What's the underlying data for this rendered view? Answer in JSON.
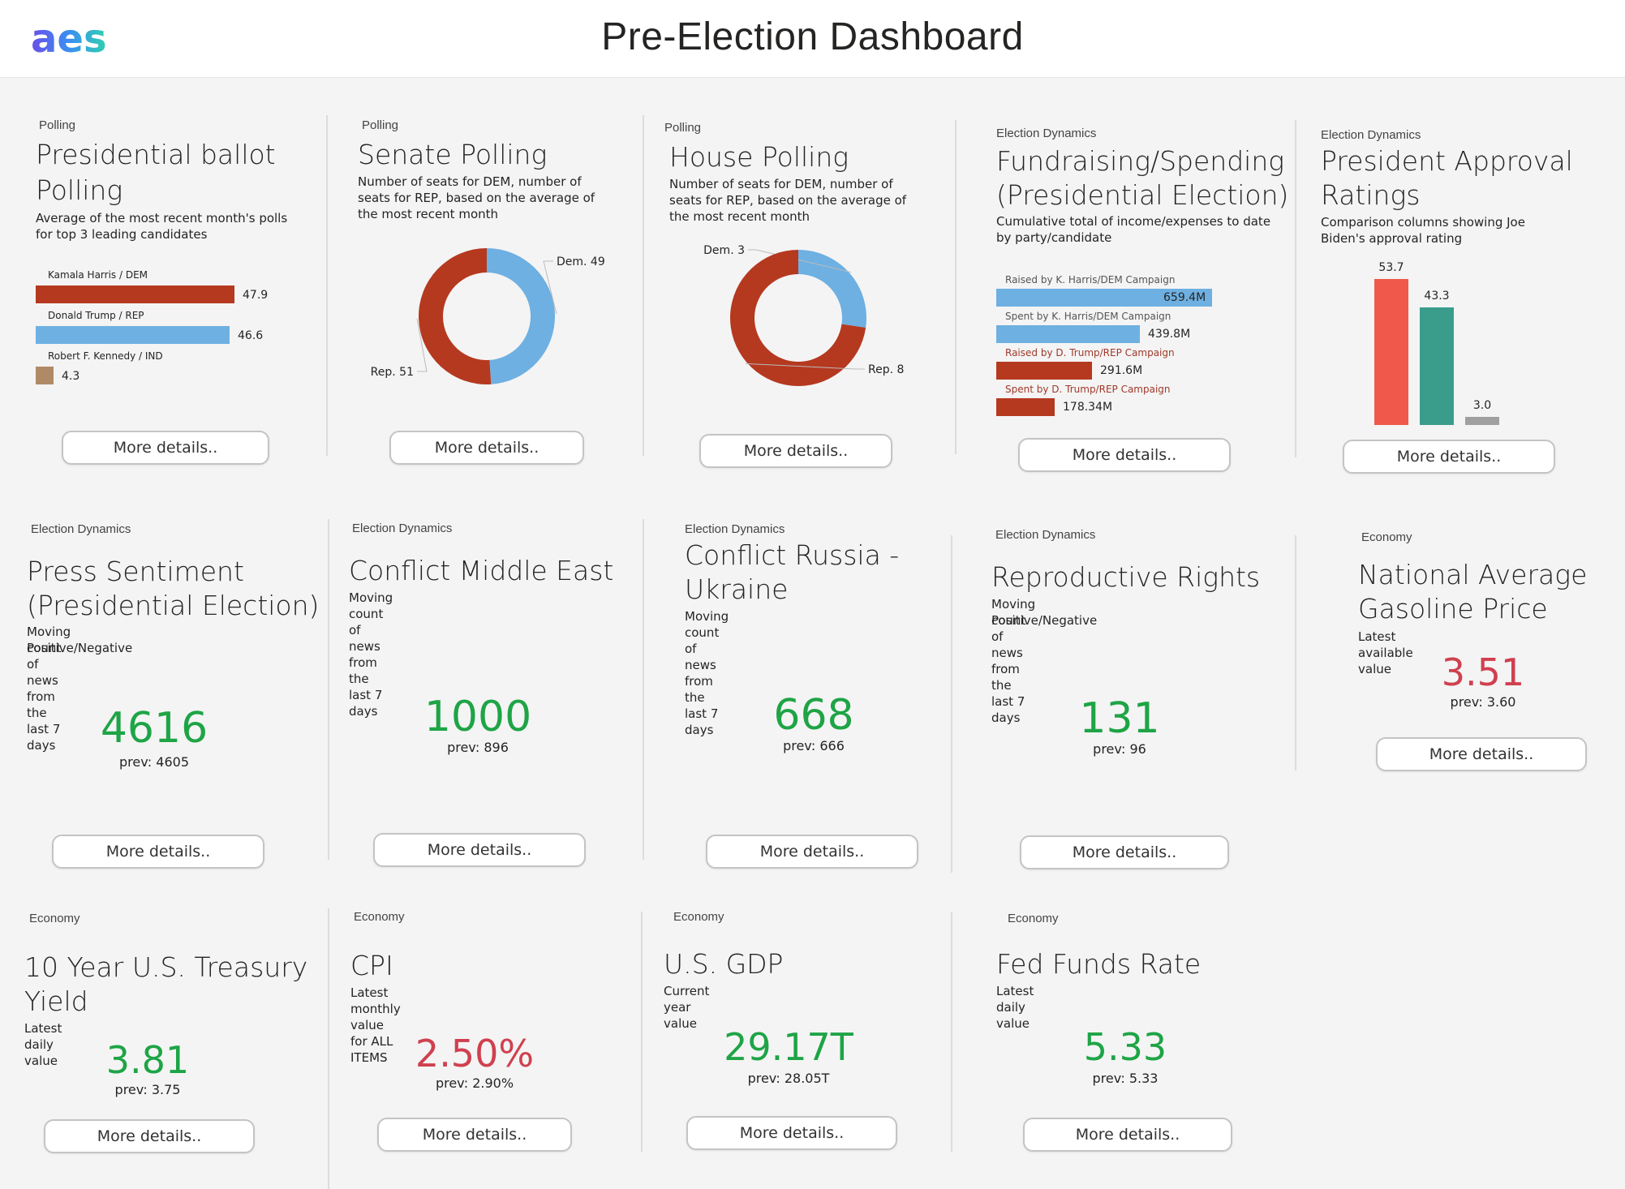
{
  "header": {
    "title": "Pre-Election Dashboard",
    "logo_text": "aes"
  },
  "button_label": "More details..",
  "colors": {
    "dem_red": "#b5391f",
    "rep_blue": "#6eb0e2",
    "ind_tan": "#b08a66",
    "positive_green": "#1ea446",
    "negative_red": "#d0404f",
    "approve_red": "#f0584b",
    "disapprove_teal": "#3a9d8c",
    "neutral_gray": "#a0a0a0"
  },
  "tiles": {
    "presidential_ballot": {
      "category": "Polling",
      "title_line1": "Presidential ballot",
      "title_line2": "Polling",
      "desc": "Average of the most recent month's polls for top 3 leading candidates"
    },
    "senate": {
      "category": "Polling",
      "title": "Senate Polling",
      "desc": "Number of seats for DEM, number of seats for REP, based on the average of the most recent month"
    },
    "house": {
      "category": "Polling",
      "title": "House Polling",
      "desc": "Number of seats for DEM, number of seats for REP, based on the average of the most recent month"
    },
    "fundraising": {
      "category": "Election Dynamics",
      "title_line1": "Fundraising/Spending",
      "title_line2": "(Presidential Election)",
      "desc": "Cumulative total of income/expenses to date by party/candidate"
    },
    "approval": {
      "category": "Election Dynamics",
      "title_line1": "President Approval",
      "title_line2": "Ratings",
      "desc": "Comparison columns showing Joe Biden's approval rating"
    },
    "press": {
      "category": "Election Dynamics",
      "title_line1": "Press Sentiment",
      "title_line2": "(Presidential Election)",
      "desc_line1": "Moving count of news from the last 7 days",
      "desc_line2": "Positive/Negative",
      "value": "4616",
      "prev": "prev: 4605"
    },
    "middle_east": {
      "category": "Election Dynamics",
      "title": "Conflict Middle East",
      "desc": "Moving count of news from the last 7 days",
      "value": "1000",
      "prev": "prev: 896"
    },
    "russia": {
      "category": "Election Dynamics",
      "title_line1": "Conflict Russia -",
      "title_line2": "Ukraine",
      "desc": "Moving count of news from the last 7 days",
      "value": "668",
      "prev": "prev: 666"
    },
    "repro": {
      "category": "Election Dynamics",
      "title": "Reproductive Rights",
      "desc_line1": "Moving count of news from the last 7 days",
      "desc_line2": "Positive/Negative",
      "value": "131",
      "prev": "prev: 96"
    },
    "gasoline": {
      "category": "Economy",
      "title_line1": "National Average",
      "title_line2": "Gasoline Price",
      "desc": "Latest available value",
      "value": "3.51",
      "prev": "prev: 3.60"
    },
    "treasury": {
      "category": "Economy",
      "title_line1": "10 Year U.S. Treasury",
      "title_line2": "Yield",
      "desc": "Latest daily value",
      "value": "3.81",
      "prev": "prev: 3.75"
    },
    "cpi": {
      "category": "Economy",
      "title": "CPI",
      "desc": "Latest monthly value for ALL ITEMS",
      "value": "2.50%",
      "prev": "prev: 2.90%"
    },
    "gdp": {
      "category": "Economy",
      "title": "U.S. GDP",
      "desc": "Current year value",
      "value": "29.17T",
      "prev": "prev: 28.05T"
    },
    "fed": {
      "category": "Economy",
      "title": "Fed Funds Rate",
      "desc": "Latest daily value",
      "value": "5.33",
      "prev": "prev: 5.33"
    }
  },
  "chart_data": [
    {
      "type": "bar",
      "orientation": "horizontal",
      "categories": [
        "Kamala Harris / DEM",
        "Donald Trump / REP",
        "Robert F. Kennedy / IND"
      ],
      "values": [
        47.9,
        46.6,
        4.3
      ],
      "value_labels": [
        "47.9",
        "46.6",
        "4.3"
      ],
      "colors": [
        "#b5391f",
        "#6eb0e2",
        "#b08a66"
      ]
    },
    {
      "type": "pie",
      "donut": true,
      "slices": [
        {
          "label": "Dem. 49",
          "value": 49,
          "color": "#6eb0e2"
        },
        {
          "label": "Rep. 51",
          "value": 51,
          "color": "#b5391f"
        }
      ]
    },
    {
      "type": "pie",
      "donut": true,
      "slices": [
        {
          "label": "Dem. 3",
          "value": 3,
          "color": "#6eb0e2"
        },
        {
          "label": "Rep. 8",
          "value": 8,
          "color": "#b5391f"
        }
      ]
    },
    {
      "type": "bar",
      "orientation": "horizontal",
      "categories": [
        "Raised by K. Harris/DEM Campaign",
        "Spent by K. Harris/DEM Campaign",
        "Raised by D. Trump/REP Campaign",
        "Spent by D. Trump/REP Campaign"
      ],
      "values": [
        659.4,
        439.8,
        291.6,
        178.34
      ],
      "value_labels": [
        "659.4M",
        "439.8M",
        "291.6M",
        "178.34M"
      ],
      "colors": [
        "#6eb0e2",
        "#6eb0e2",
        "#b5391f",
        "#b5391f"
      ],
      "label_colors": [
        "#555555",
        "#555555",
        "#a0392a",
        "#a0392a"
      ]
    },
    {
      "type": "bar",
      "orientation": "vertical",
      "values": [
        53.7,
        43.3,
        3.0
      ],
      "value_labels": [
        "53.7",
        "43.3",
        "3.0"
      ],
      "colors": [
        "#f0584b",
        "#3a9d8c",
        "#a0a0a0"
      ]
    }
  ]
}
